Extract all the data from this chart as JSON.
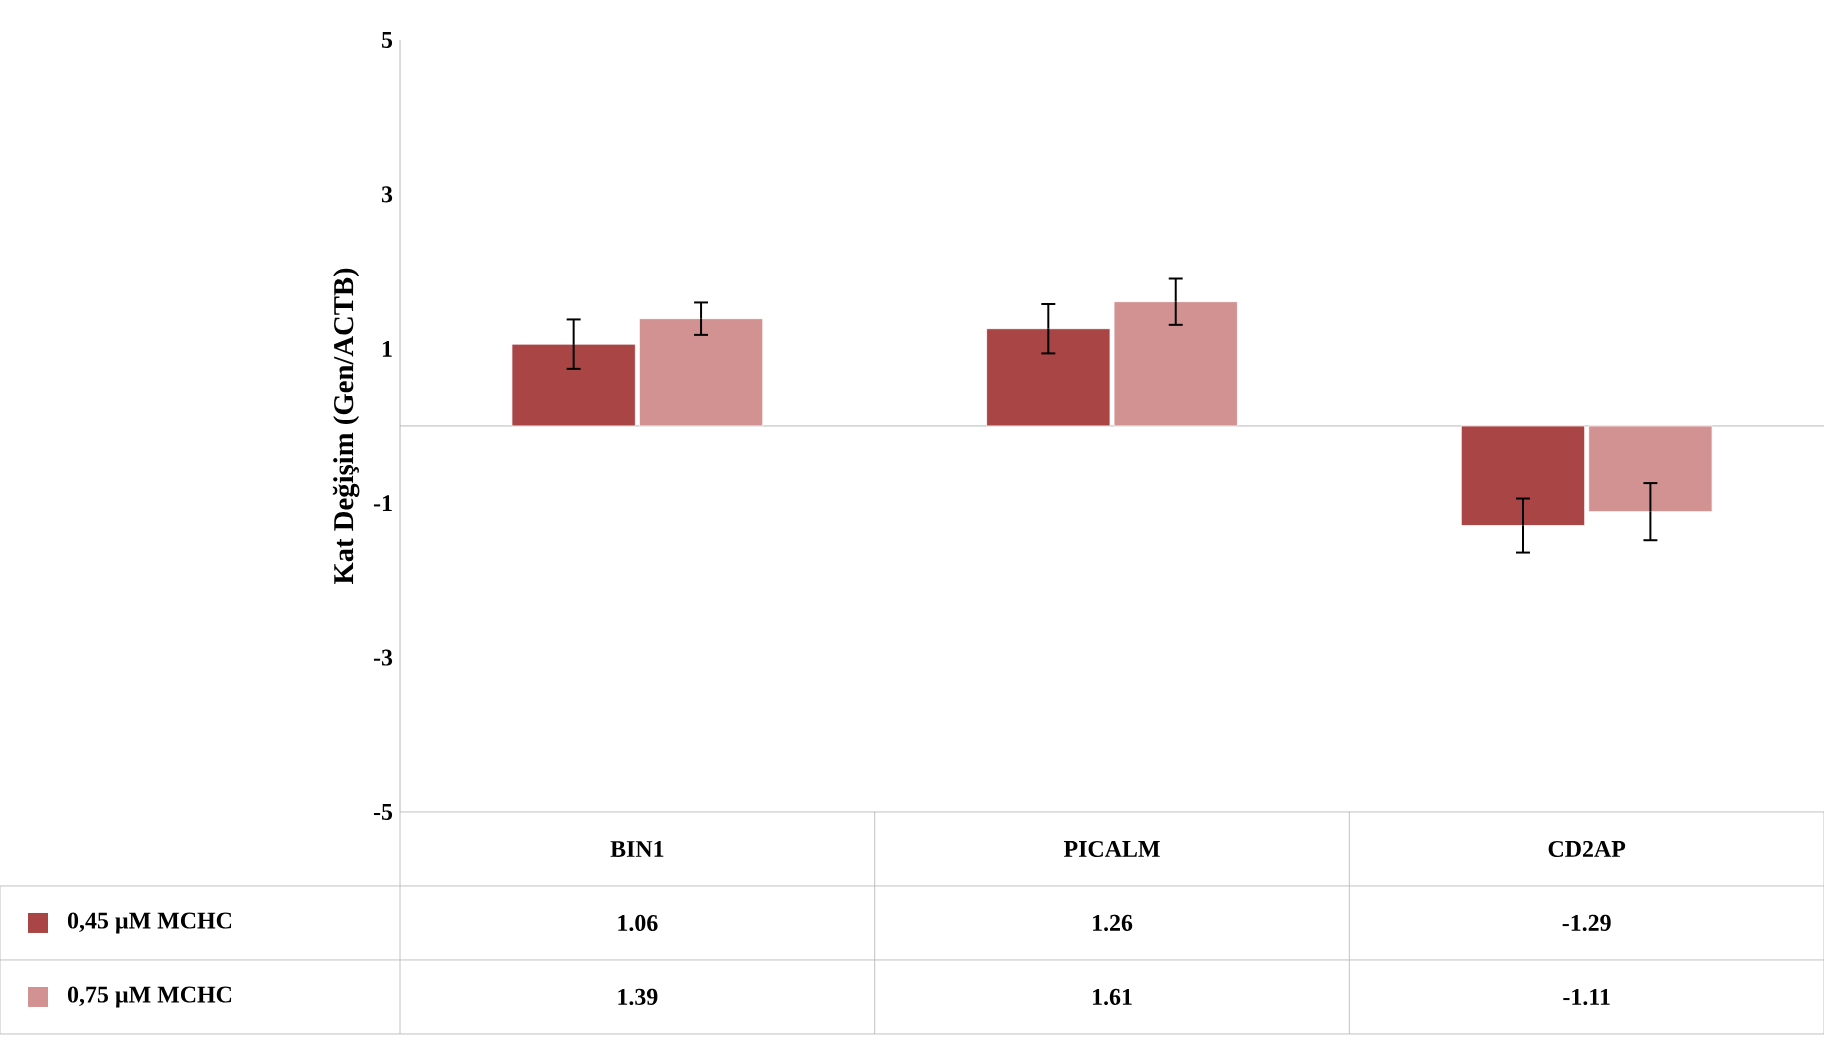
{
  "chart_data": {
    "type": "bar",
    "ylabel": "Kat Değişim (Gen/ACTB)",
    "categories": [
      "BIN1",
      "PICALM",
      "CD2AP"
    ],
    "series": [
      {
        "name": "0,45 µM MCHC",
        "color": "#a94544",
        "values": [
          1.06,
          1.26,
          -1.29
        ],
        "errors": [
          0.32,
          0.32,
          0.35
        ]
      },
      {
        "name": "0,75 µM MCHC",
        "color": "#d39292",
        "values": [
          1.39,
          1.61,
          -1.11
        ],
        "errors": [
          0.21,
          0.3,
          0.37
        ]
      }
    ],
    "ylim": [
      -5,
      5
    ],
    "yticks": [
      -5,
      -3,
      -1,
      1,
      3,
      5
    ],
    "data_labels": true,
    "legend": "bottom left"
  }
}
